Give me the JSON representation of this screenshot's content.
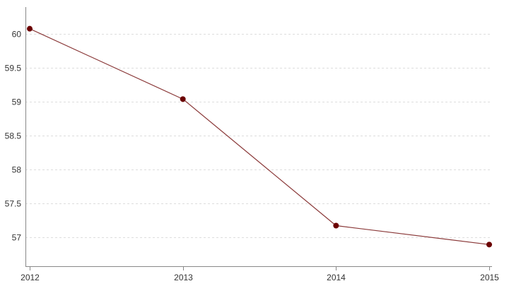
{
  "chart_data": {
    "type": "line",
    "title": "",
    "xlabel": "",
    "ylabel": "",
    "x": [
      "2012",
      "2013",
      "2014",
      "2015"
    ],
    "series": [
      {
        "values": [
          60.08,
          59.04,
          57.17,
          56.89
        ],
        "color": "#8b3a3a",
        "marker_color": "#6b0000"
      }
    ],
    "yticks": [
      57,
      57.5,
      58,
      58.5,
      59,
      59.5,
      60
    ],
    "ytick_labels": [
      "57",
      "57.5",
      "58",
      "58.5",
      "59",
      "59.5",
      "60"
    ],
    "ylim": [
      56.57,
      60.4
    ],
    "grid": true,
    "legend": "none"
  }
}
